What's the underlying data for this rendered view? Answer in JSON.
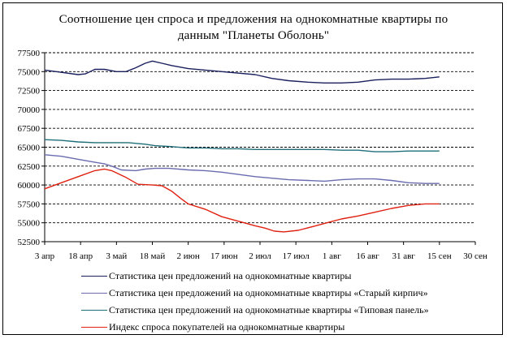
{
  "chart_data": {
    "type": "line",
    "title": [
      "Соотношение цен спроса и предложения на однокомнатные квартиры по",
      "данным \"Планеты Оболонь\""
    ],
    "xlabel": "",
    "ylabel": "",
    "x_ticks": [
      "3 апр",
      "18 апр",
      "3 май",
      "18 май",
      "2 июн",
      "17 июн",
      "2 июл",
      "17 июл",
      "1 авг",
      "16 авг",
      "31 авг",
      "15 сен",
      "30 сен"
    ],
    "y_ticks": [
      52500,
      55000,
      57500,
      60000,
      62500,
      65000,
      67500,
      70000,
      72500,
      75000,
      77500
    ],
    "ylim": [
      52500,
      77500
    ],
    "grid": "horizontal dashed",
    "legend_position": "bottom",
    "series": [
      {
        "name": "Статистика цен предложений на однокомнатные квартиры",
        "color": "#1a1f5e",
        "points": [
          [
            0,
            75200
          ],
          [
            7,
            74900
          ],
          [
            14,
            74600
          ],
          [
            17,
            74700
          ],
          [
            21,
            75300
          ],
          [
            25,
            75300
          ],
          [
            30,
            75000
          ],
          [
            34,
            75000
          ],
          [
            38,
            75500
          ],
          [
            42,
            76100
          ],
          [
            45,
            76400
          ],
          [
            49,
            76100
          ],
          [
            53,
            75800
          ],
          [
            60,
            75400
          ],
          [
            67,
            75200
          ],
          [
            74,
            75000
          ],
          [
            81,
            74800
          ],
          [
            88,
            74600
          ],
          [
            95,
            74100
          ],
          [
            102,
            73800
          ],
          [
            110,
            73600
          ],
          [
            117,
            73500
          ],
          [
            124,
            73500
          ],
          [
            131,
            73600
          ],
          [
            138,
            73900
          ],
          [
            145,
            74000
          ],
          [
            152,
            74000
          ],
          [
            159,
            74100
          ],
          [
            165,
            74300
          ]
        ]
      },
      {
        "name": "Статистика цен предложений на однокомнатные квартиры «Старый кирпич»",
        "color": "#6b6bb0",
        "points": [
          [
            0,
            64000
          ],
          [
            7,
            63800
          ],
          [
            14,
            63400
          ],
          [
            21,
            63000
          ],
          [
            25,
            62800
          ],
          [
            28,
            62500
          ],
          [
            32,
            62000
          ],
          [
            38,
            61900
          ],
          [
            42,
            62100
          ],
          [
            46,
            62200
          ],
          [
            52,
            62200
          ],
          [
            60,
            62000
          ],
          [
            67,
            61900
          ],
          [
            74,
            61700
          ],
          [
            81,
            61400
          ],
          [
            88,
            61100
          ],
          [
            95,
            60900
          ],
          [
            102,
            60700
          ],
          [
            110,
            60600
          ],
          [
            117,
            60500
          ],
          [
            124,
            60700
          ],
          [
            131,
            60800
          ],
          [
            138,
            60800
          ],
          [
            145,
            60600
          ],
          [
            152,
            60300
          ],
          [
            159,
            60200
          ],
          [
            165,
            60200
          ]
        ]
      },
      {
        "name": "Статистика цен предложений на однокомнатные квартиры «Типовая панель»",
        "color": "#1f6f7a",
        "points": [
          [
            0,
            66000
          ],
          [
            7,
            65900
          ],
          [
            14,
            65700
          ],
          [
            21,
            65600
          ],
          [
            28,
            65600
          ],
          [
            35,
            65600
          ],
          [
            42,
            65400
          ],
          [
            46,
            65200
          ],
          [
            52,
            65100
          ],
          [
            60,
            64900
          ],
          [
            67,
            64900
          ],
          [
            74,
            64800
          ],
          [
            81,
            64800
          ],
          [
            88,
            64700
          ],
          [
            95,
            64700
          ],
          [
            102,
            64700
          ],
          [
            110,
            64700
          ],
          [
            117,
            64700
          ],
          [
            124,
            64600
          ],
          [
            131,
            64600
          ],
          [
            138,
            64400
          ],
          [
            145,
            64400
          ],
          [
            152,
            64500
          ],
          [
            159,
            64500
          ],
          [
            165,
            64500
          ]
        ]
      },
      {
        "name": "Индекс спроса покупателей на однокомнатные квартиры",
        "color": "#e02010",
        "points": [
          [
            0,
            59500
          ],
          [
            7,
            60300
          ],
          [
            14,
            61100
          ],
          [
            21,
            61900
          ],
          [
            25,
            62100
          ],
          [
            28,
            61900
          ],
          [
            34,
            61000
          ],
          [
            39,
            60100
          ],
          [
            45,
            60000
          ],
          [
            49,
            59900
          ],
          [
            53,
            59200
          ],
          [
            57,
            58200
          ],
          [
            60,
            57500
          ],
          [
            67,
            56800
          ],
          [
            74,
            55800
          ],
          [
            81,
            55200
          ],
          [
            88,
            54600
          ],
          [
            92,
            54300
          ],
          [
            96,
            53900
          ],
          [
            100,
            53800
          ],
          [
            106,
            54000
          ],
          [
            112,
            54500
          ],
          [
            118,
            55000
          ],
          [
            124,
            55500
          ],
          [
            131,
            55900
          ],
          [
            138,
            56400
          ],
          [
            145,
            56900
          ],
          [
            152,
            57300
          ],
          [
            159,
            57500
          ],
          [
            165,
            57500
          ]
        ]
      }
    ]
  }
}
